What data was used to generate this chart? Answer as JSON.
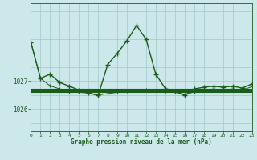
{
  "title": "Graphe pression niveau de la mer (hPa)",
  "bg_color": "#cce8ea",
  "grid_color_major": "#a0c8c8",
  "grid_color_minor": "#b8d8d8",
  "line_color": "#1a5c1a",
  "xlim": [
    0,
    23
  ],
  "ylim": [
    1025.2,
    1029.8
  ],
  "yticks": [
    1026,
    1027
  ],
  "xticks": [
    0,
    1,
    2,
    3,
    4,
    5,
    6,
    7,
    8,
    9,
    10,
    11,
    12,
    13,
    14,
    15,
    16,
    17,
    18,
    19,
    20,
    21,
    22,
    23
  ],
  "main_values": [
    1028.4,
    1027.1,
    1027.25,
    1026.95,
    1026.82,
    1026.68,
    1026.58,
    1026.48,
    1027.6,
    1028.0,
    1028.45,
    1029.0,
    1028.5,
    1027.25,
    1026.73,
    1026.65,
    1026.48,
    1026.72,
    1026.78,
    1026.82,
    1026.78,
    1026.82,
    1026.75,
    1026.9
  ],
  "flat1": 1026.72,
  "flat2": 1026.68,
  "flat3": 1026.65,
  "flat4": 1026.62,
  "sec_values": [
    1028.4,
    1027.1,
    1026.83,
    1026.72,
    1026.62,
    1026.6,
    1026.57,
    1026.5,
    1026.55,
    1026.6,
    1026.65,
    1026.68,
    1026.7,
    1026.68,
    1026.65,
    1026.62,
    1026.5,
    1026.62,
    1026.68,
    1026.72,
    1026.68,
    1026.72,
    1026.68,
    1026.8
  ]
}
